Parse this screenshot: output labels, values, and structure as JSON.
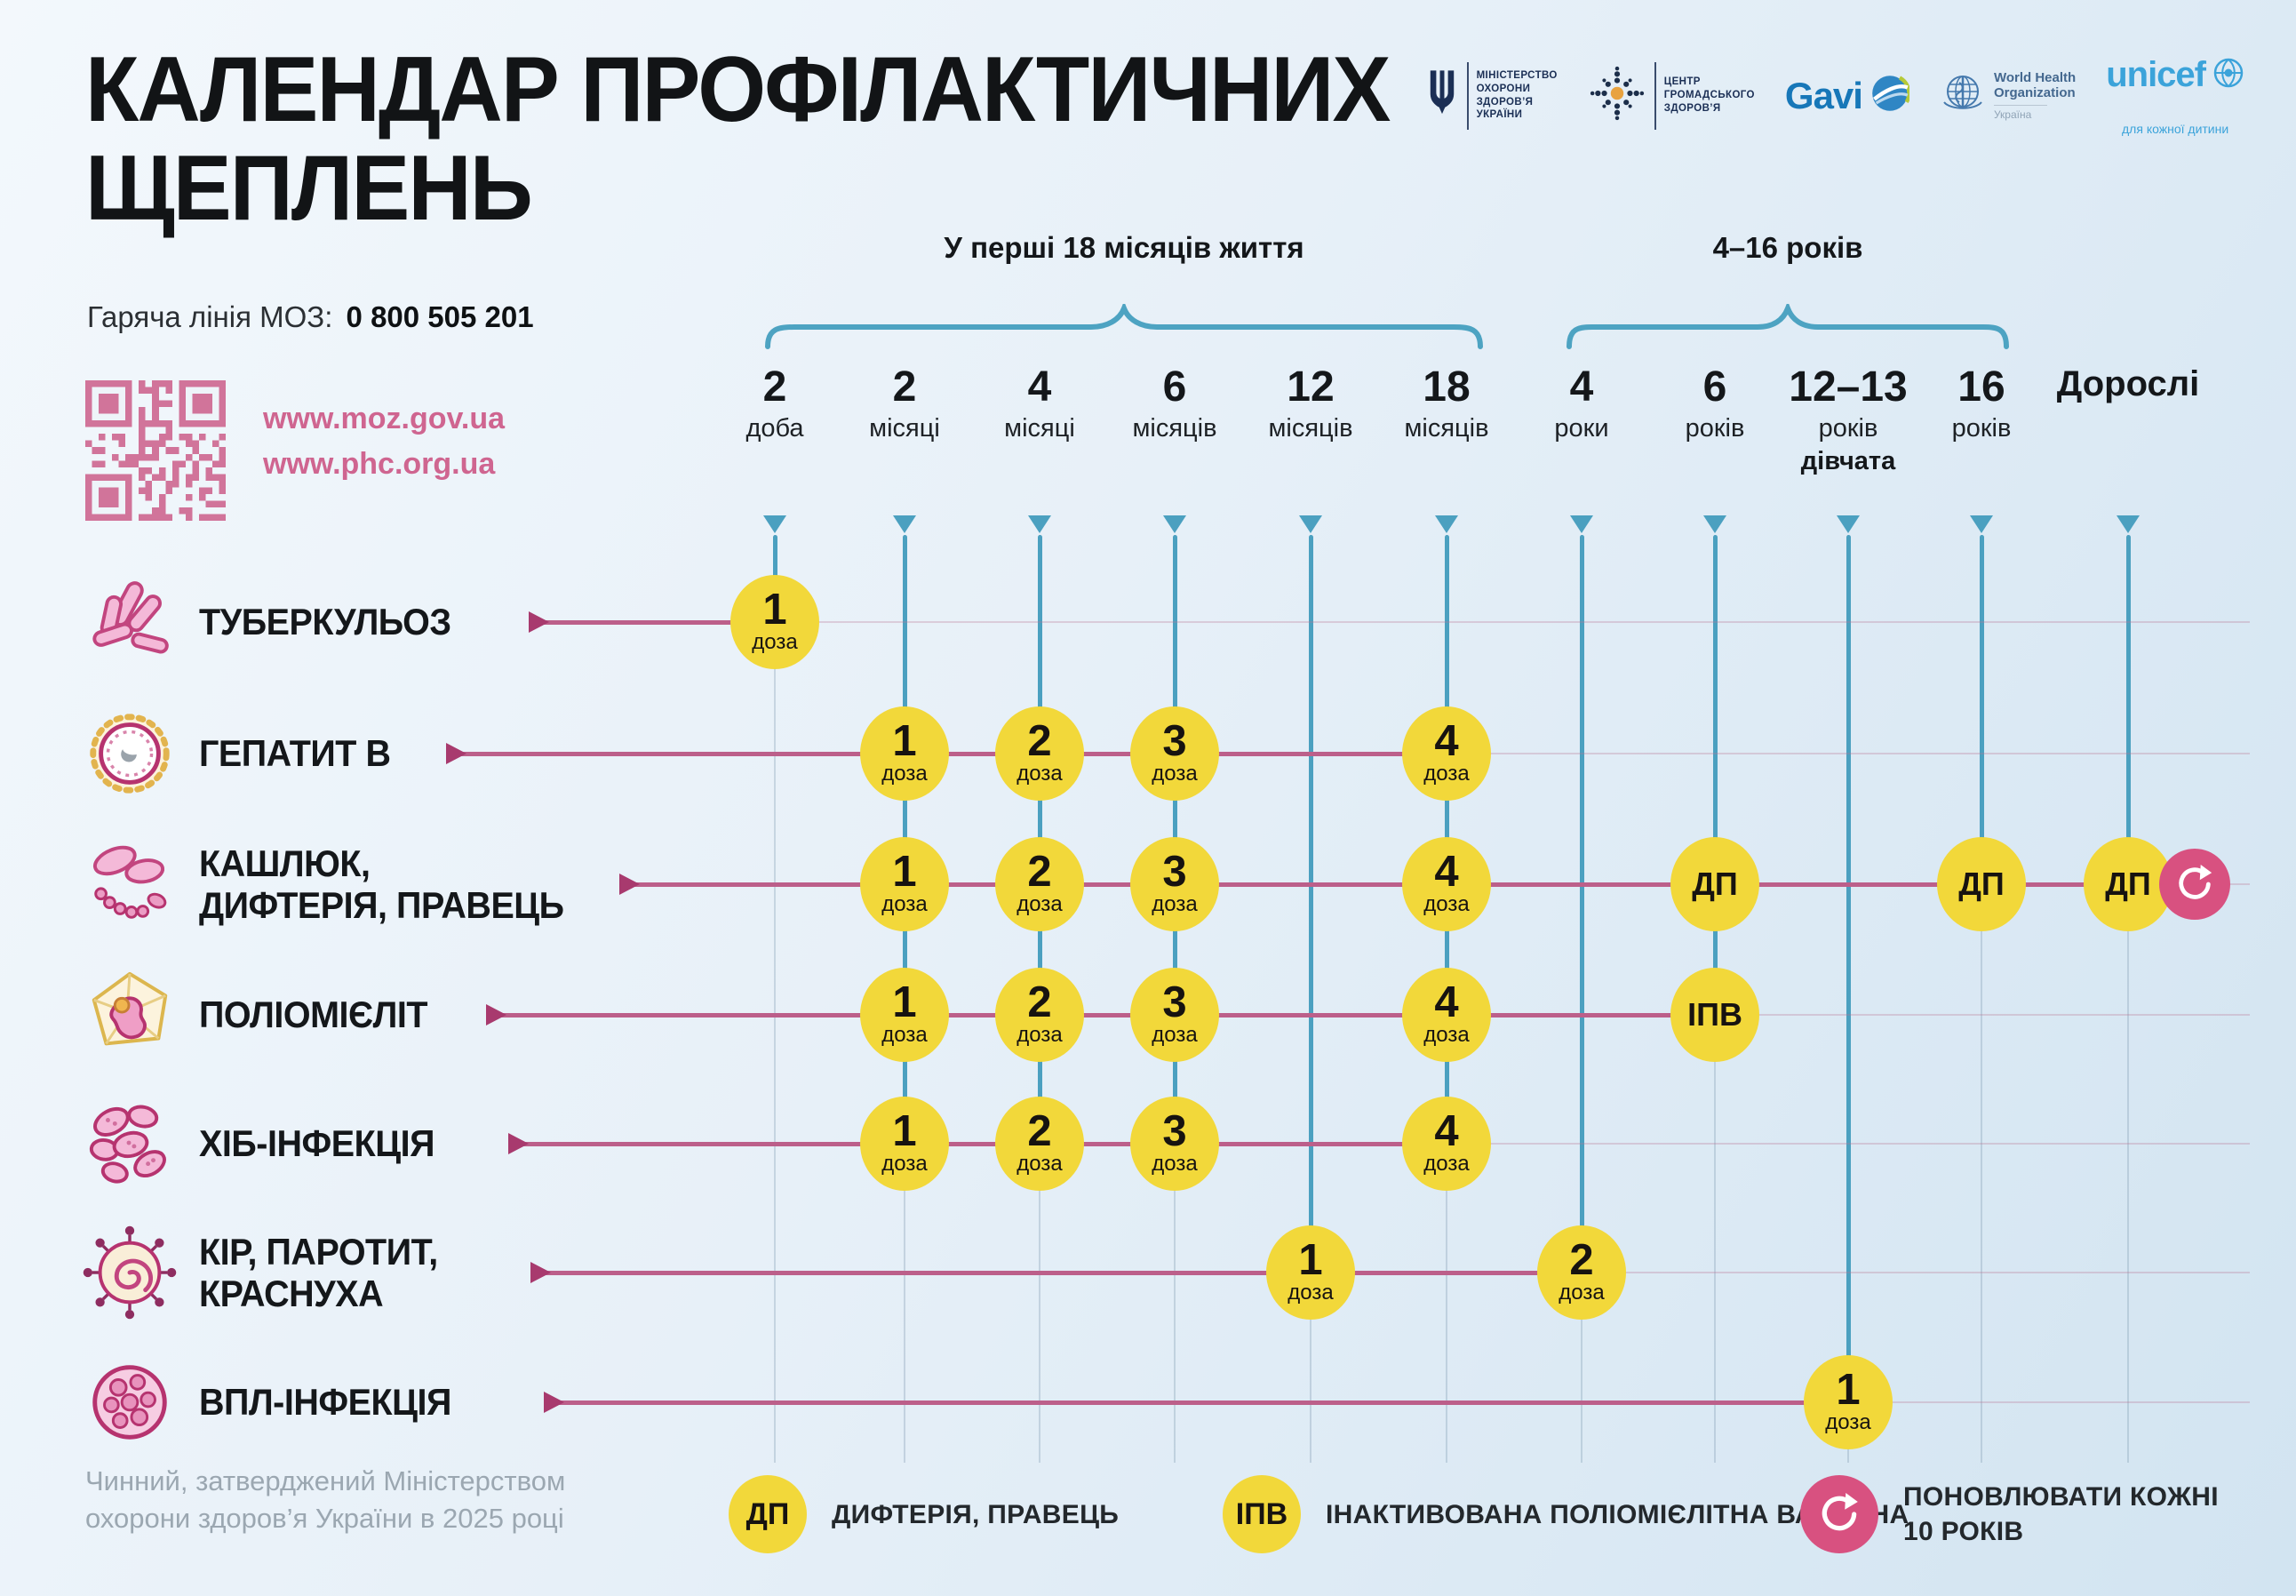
{
  "poster": {
    "title_line1": "КАЛЕНДАР ПРОФІЛАКТИЧНИХ",
    "title_line2": "ЩЕПЛЕНЬ",
    "hotline_label": "Гаряча лінія МОЗ:",
    "hotline_number": "0 800 505 201",
    "links": {
      "moz": "www.moz.gov.ua",
      "phc": "www.phc.org.ua"
    },
    "footer_line1": "Чинний, затверджений Міністерством",
    "footer_line2": "охорони здоров’я України в 2025 році"
  },
  "logos": {
    "moh": {
      "lines": [
        "МІНІСТЕРСТВО",
        "ОХОРОНИ",
        "ЗДОРОВ’Я",
        "УКРАЇНИ"
      ]
    },
    "phc": {
      "lines": [
        "ЦЕНТР",
        "ГРОМАДСЬКОГО",
        "ЗДОРОВ’Я"
      ]
    },
    "gavi": {
      "text": "Gavi"
    },
    "who": {
      "line1": "World Health",
      "line2": "Organization",
      "country": "Україна"
    },
    "unicef": {
      "text": "unicef",
      "tagline": "для кожної дитини"
    }
  },
  "groups": [
    {
      "label": "У перші 18 місяців життя"
    },
    {
      "label": "4–16 років"
    }
  ],
  "columns": [
    {
      "num": "2",
      "unit": "доба"
    },
    {
      "num": "2",
      "unit": "місяці"
    },
    {
      "num": "4",
      "unit": "місяці"
    },
    {
      "num": "6",
      "unit": "місяців"
    },
    {
      "num": "12",
      "unit": "місяців"
    },
    {
      "num": "18",
      "unit": "місяців"
    },
    {
      "num": "4",
      "unit": "роки"
    },
    {
      "num": "6",
      "unit": "років"
    },
    {
      "num": "12–13",
      "unit": "років",
      "extra": "дівчата"
    },
    {
      "num": "16",
      "unit": "років"
    },
    {
      "num": "Дорослі",
      "unit": ""
    }
  ],
  "rows": [
    {
      "icon": "tuberculosis-icon",
      "lines": [
        "ТУБЕРКУЛЬОЗ"
      ],
      "doses": [
        {
          "col": 0,
          "num": "1",
          "unit": "доза"
        }
      ]
    },
    {
      "icon": "hepatitis-b-icon",
      "lines": [
        "ГЕПАТИТ В"
      ],
      "doses": [
        {
          "col": 1,
          "num": "1",
          "unit": "доза"
        },
        {
          "col": 2,
          "num": "2",
          "unit": "доза"
        },
        {
          "col": 3,
          "num": "3",
          "unit": "доза"
        },
        {
          "col": 5,
          "num": "4",
          "unit": "доза"
        }
      ]
    },
    {
      "icon": "pertussis-diphtheria-tetanus-icon",
      "lines": [
        "КАШЛЮК,",
        "ДИФТЕРІЯ, ПРАВЕЦЬ"
      ],
      "doses": [
        {
          "col": 1,
          "num": "1",
          "unit": "доза"
        },
        {
          "col": 2,
          "num": "2",
          "unit": "доза"
        },
        {
          "col": 3,
          "num": "3",
          "unit": "доза"
        },
        {
          "col": 5,
          "num": "4",
          "unit": "доза"
        },
        {
          "col": 7,
          "code": "ДП"
        },
        {
          "col": 9,
          "code": "ДП"
        },
        {
          "col": 10,
          "code": "ДП"
        }
      ],
      "refresh": true
    },
    {
      "icon": "polio-icon",
      "lines": [
        "ПОЛІОМІЄЛІТ"
      ],
      "doses": [
        {
          "col": 1,
          "num": "1",
          "unit": "доза"
        },
        {
          "col": 2,
          "num": "2",
          "unit": "доза"
        },
        {
          "col": 3,
          "num": "3",
          "unit": "доза"
        },
        {
          "col": 5,
          "num": "4",
          "unit": "доза"
        },
        {
          "col": 7,
          "code": "ІПВ"
        }
      ]
    },
    {
      "icon": "hib-icon",
      "lines": [
        "ХІБ-ІНФЕКЦІЯ"
      ],
      "doses": [
        {
          "col": 1,
          "num": "1",
          "unit": "доза"
        },
        {
          "col": 2,
          "num": "2",
          "unit": "доза"
        },
        {
          "col": 3,
          "num": "3",
          "unit": "доза"
        },
        {
          "col": 5,
          "num": "4",
          "unit": "доза"
        }
      ]
    },
    {
      "icon": "measles-mumps-rubella-icon",
      "lines": [
        "КІР, ПАРОТИТ,",
        "КРАСНУХА"
      ],
      "doses": [
        {
          "col": 4,
          "num": "1",
          "unit": "доза"
        },
        {
          "col": 6,
          "num": "2",
          "unit": "доза"
        }
      ]
    },
    {
      "icon": "hpv-icon",
      "lines": [
        "ВПЛ-ІНФЕКЦІЯ"
      ],
      "doses": [
        {
          "col": 8,
          "num": "1",
          "unit": "доза"
        }
      ]
    }
  ],
  "legend": [
    {
      "badge": "ДП",
      "text": "ДИФТЕРІЯ, ПРАВЕЦЬ"
    },
    {
      "badge": "ІПВ",
      "text": "ІНАКТИВОВАНА ПОЛІОМІЄЛІТНА ВАКЦИНА"
    },
    {
      "badge": "refresh",
      "lines": [
        "ПОНОВЛЮВАТИ КОЖНІ",
        "10 РОКІВ"
      ]
    }
  ],
  "colors": {
    "accent_pink_line": "#bc5f8a",
    "accent_pink_arrow": "#a83a6e",
    "accent_teal": "#4ba0c0",
    "dose_yellow": "#f2d83a",
    "badge_pink": "#d85180",
    "link_pink": "#cf6590",
    "qr_pink": "#d1749a"
  }
}
